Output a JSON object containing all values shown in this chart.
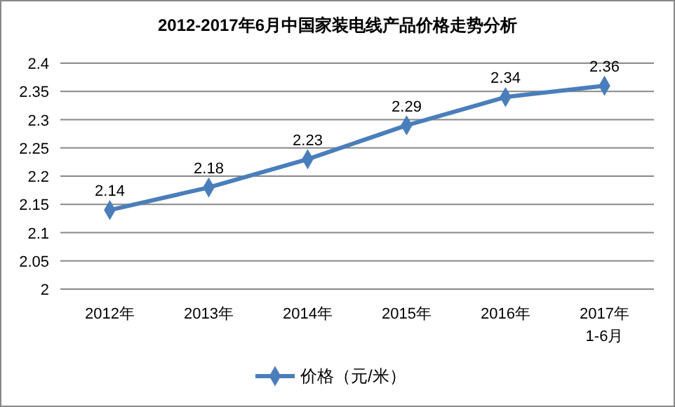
{
  "chart_data": {
    "type": "line",
    "title": "2012-2017年6月中国家装电线产品价格走势分析",
    "categories": [
      "2012年",
      "2013年",
      "2014年",
      "2015年",
      "2016年",
      "2017年\n1-6月"
    ],
    "series": [
      {
        "name": "价格（元/米）",
        "color": "#4a7ebb",
        "values": [
          2.14,
          2.18,
          2.23,
          2.29,
          2.34,
          2.36
        ]
      }
    ],
    "ylim": [
      2,
      2.4
    ],
    "yticks": [
      2,
      {
        "value": 2.05,
        "label": "2.05"
      },
      {
        "value": 2.1,
        "label": "2.1"
      },
      {
        "value": 2.15,
        "label": "2.15"
      },
      {
        "value": 2.2,
        "label": "2.2"
      },
      {
        "value": 2.25,
        "label": "2.25"
      },
      {
        "value": 2.3,
        "label": "2.3"
      },
      {
        "value": 2.35,
        "label": "2.35"
      },
      {
        "value": 2.4,
        "label": "2.4"
      }
    ],
    "grid": "y",
    "legend": "bottom",
    "marker": "diamond",
    "line_style": "solid",
    "data_labels": true
  }
}
